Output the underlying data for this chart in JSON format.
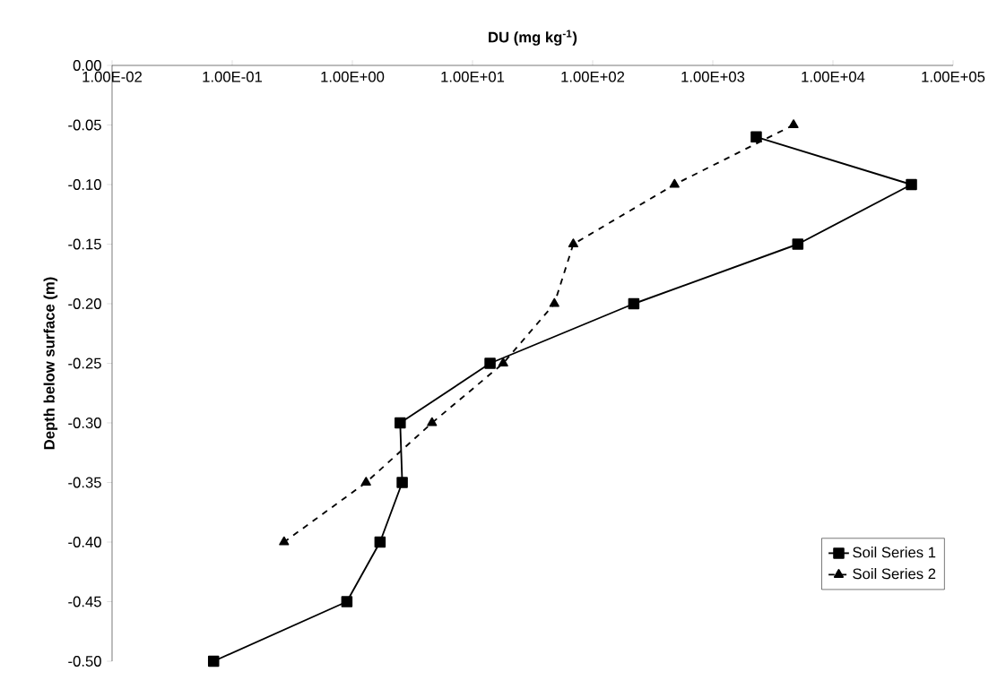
{
  "chart_data": {
    "type": "line",
    "xlabel": "DU (mg kg$^{-1}$)",
    "ylabel": "Depth below surface (m)",
    "log": "x",
    "xlim": [
      0.01,
      100000
    ],
    "ylim": [
      -0.5,
      0
    ],
    "xticks": [
      {
        "value": 0.01,
        "label": "1.00E-02"
      },
      {
        "value": 0.1,
        "label": "1.00E-01"
      },
      {
        "value": 1,
        "label": "1.00E+00"
      },
      {
        "value": 10,
        "label": "1.00E+01"
      },
      {
        "value": 100,
        "label": "1.00E+02"
      },
      {
        "value": 1000,
        "label": "1.00E+03"
      },
      {
        "value": 10000,
        "label": "1.00E+04"
      },
      {
        "value": 100000,
        "label": "1.00E+05"
      }
    ],
    "yticks": [
      {
        "value": 0,
        "label": "0.00"
      },
      {
        "value": -0.05,
        "label": "-0.05"
      },
      {
        "value": -0.1,
        "label": "-0.10"
      },
      {
        "value": -0.15,
        "label": "-0.15"
      },
      {
        "value": -0.2,
        "label": "-0.20"
      },
      {
        "value": -0.25,
        "label": "-0.25"
      },
      {
        "value": -0.3,
        "label": "-0.30"
      },
      {
        "value": -0.35,
        "label": "-0.35"
      },
      {
        "value": -0.4,
        "label": "-0.40"
      },
      {
        "value": -0.45,
        "label": "-0.45"
      },
      {
        "value": -0.5,
        "label": "-0.50"
      }
    ],
    "grid": false,
    "legend": "bottom right",
    "series": [
      {
        "name": "Soil Series 1",
        "color": "#000000",
        "marker": "square",
        "line_style": "solid",
        "x": [
          2300,
          45000,
          5100,
          220,
          14,
          2.5,
          2.6,
          1.7,
          0.9,
          0.07
        ],
        "values": [
          -0.06,
          -0.1,
          -0.15,
          -0.2,
          -0.25,
          -0.3,
          -0.35,
          -0.4,
          -0.45,
          -0.5
        ]
      },
      {
        "name": "Soil Series 2",
        "color": "#000000",
        "marker": "triangle",
        "line_style": "dashed",
        "x": [
          4700,
          480,
          69,
          48,
          18,
          4.6,
          1.3,
          0.27
        ],
        "values": [
          -0.05,
          -0.1,
          -0.15,
          -0.2,
          -0.25,
          -0.3,
          -0.35,
          -0.4
        ]
      }
    ]
  }
}
